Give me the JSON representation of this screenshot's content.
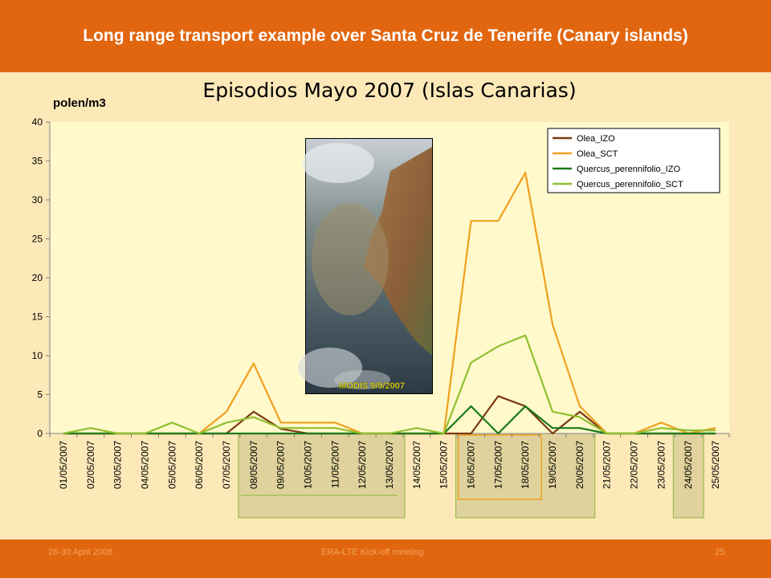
{
  "slide": {
    "title": "Long range transport example over Santa Cruz de Tenerife (Canary islands)"
  },
  "footer": {
    "date": "26-30 April 2008",
    "event": "ERA-LTE Kick-off meeting",
    "page": "25"
  },
  "colors": {
    "header": "#e2660f",
    "background": "#fde8b8",
    "plot_background": "#fff9cc"
  },
  "satellite_image": {
    "caption": "MODIS 9/5/2007"
  },
  "chart_data": {
    "type": "line",
    "title": "Episodios Mayo 2007 (Islas Canarias)",
    "ylabel": "polen/m3",
    "xlabel": "",
    "ylim": [
      0,
      40
    ],
    "yticks": [
      0,
      5,
      10,
      15,
      20,
      25,
      30,
      35,
      40
    ],
    "grid": false,
    "legend_position": "top-right",
    "categories": [
      "01/05/2007",
      "02/05/2007",
      "03/05/2007",
      "04/05/2007",
      "05/05/2007",
      "06/05/2007",
      "07/05/2007",
      "08/05/2007",
      "09/05/2007",
      "10/05/2007",
      "11/05/2007",
      "12/05/2007",
      "13/05/2007",
      "14/05/2007",
      "15/05/2007",
      "16/05/2007",
      "17/05/2007",
      "18/05/2007",
      "19/05/2007",
      "20/05/2007",
      "21/05/2007",
      "22/05/2007",
      "23/05/2007",
      "24/05/2007",
      "25/05/2007"
    ],
    "series": [
      {
        "name": "Olea_IZO",
        "color": "#7b3a10",
        "values": [
          0,
          0,
          0,
          0,
          0,
          0,
          0,
          2.8,
          0.6,
          0,
          0,
          0,
          0,
          0,
          0,
          0,
          4.8,
          3.5,
          0,
          2.8,
          0,
          0,
          0,
          0,
          0
        ]
      },
      {
        "name": "Olea_SCT",
        "color": "#f0a020",
        "values": [
          0,
          0,
          0,
          0,
          0,
          0,
          2.8,
          9.0,
          1.4,
          1.4,
          1.4,
          0,
          0,
          0,
          0,
          27.3,
          27.3,
          33.5,
          14.0,
          3.5,
          0,
          0,
          1.4,
          0,
          0.7
        ]
      },
      {
        "name": "Quercus_perennifolio_IZO",
        "color": "#1a7a1a",
        "values": [
          0,
          0,
          0,
          0,
          0,
          0,
          0,
          0,
          0,
          0,
          0,
          0,
          0,
          0,
          0,
          3.5,
          0,
          3.5,
          0.7,
          0.7,
          0,
          0,
          0,
          0,
          0
        ]
      },
      {
        "name": "Quercus_perennifolio_SCT",
        "color": "#90c030",
        "values": [
          0,
          0.7,
          0,
          0,
          1.4,
          0,
          1.4,
          2.1,
          0.7,
          0.7,
          0.7,
          0,
          0,
          0.7,
          0,
          9.1,
          11.2,
          12.6,
          2.8,
          2.1,
          0,
          0,
          0.7,
          0.4,
          0.4
        ]
      }
    ],
    "highlighted_periods": [
      {
        "from": "08/05/2007",
        "to": "13/05/2007"
      },
      {
        "from": "16/05/2007",
        "to": "20/05/2007"
      },
      {
        "from": "24/05/2007",
        "to": "24/05/2007"
      }
    ]
  }
}
